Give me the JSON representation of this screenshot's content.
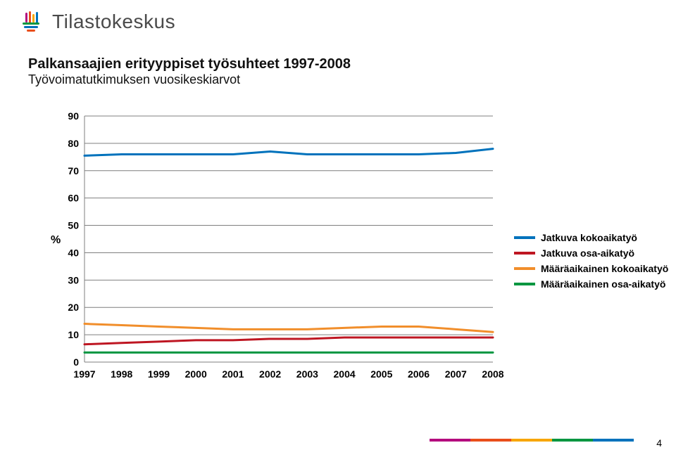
{
  "brand": "Tilastokeskus",
  "logo_colors": [
    "#b40b7e",
    "#e94e1b",
    "#f7a600",
    "#009ee3",
    "#009640"
  ],
  "title": "Palkansaajien erityyppiset työsuhteet 1997-2008",
  "title_fontsize": 20,
  "subtitle": "Työvoimatutkimuksen vuosikeskiarvot",
  "subtitle_fontsize": 18,
  "page_number": "4",
  "footer_colors": [
    "#b40b7e",
    "#e94e1b",
    "#f7a600",
    "#009640",
    "#0072bc"
  ],
  "chart": {
    "type": "line",
    "background_color": "#ffffff",
    "grid_color": "#7f7f7f",
    "line_width": 3,
    "x_categories": [
      "1997",
      "1998",
      "1999",
      "2000",
      "2001",
      "2002",
      "2003",
      "2004",
      "2005",
      "2006",
      "2007",
      "2008"
    ],
    "y_ticks": [
      0,
      10,
      20,
      30,
      40,
      50,
      60,
      70,
      80,
      90
    ],
    "ylim": [
      0,
      90
    ],
    "y_axis_title": "%",
    "label_fontsize": 14,
    "series": [
      {
        "name": "Jatkuva kokoaikatyö",
        "color": "#0072bc",
        "values": [
          75.5,
          76,
          76,
          76,
          76,
          77,
          76,
          76,
          76,
          76,
          76.5,
          78
        ]
      },
      {
        "name": "Jatkuva osa-aikatyö",
        "color": "#be1622",
        "values": [
          6.5,
          7,
          7.5,
          8,
          8,
          8.5,
          8.5,
          9,
          9,
          9,
          9,
          9
        ]
      },
      {
        "name": "Määräaikainen kokoaikatyö",
        "color": "#f18e2b",
        "values": [
          14,
          13.5,
          13,
          12.5,
          12,
          12,
          12,
          12.5,
          13,
          13,
          12,
          11
        ]
      },
      {
        "name": "Määräaikainen osa-aikatyö",
        "color": "#009640",
        "values": [
          3.5,
          3.5,
          3.5,
          3.5,
          3.5,
          3.5,
          3.5,
          3.5,
          3.5,
          3.5,
          3.5,
          3.5
        ]
      }
    ]
  }
}
